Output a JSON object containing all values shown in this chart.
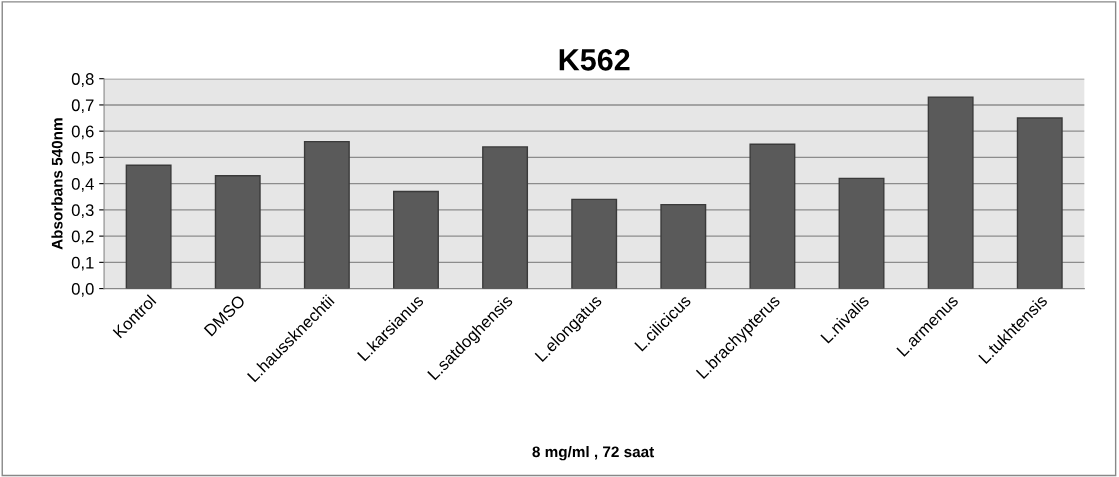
{
  "chart_data": {
    "type": "bar",
    "title": "K562",
    "xlabel": "8 mg/ml , 72 saat",
    "ylabel": "Absorbans 540nm",
    "categories": [
      "Kontrol",
      "DMSO",
      "L.haussknechtii",
      "L.karsianus",
      "L.satdoghensis",
      "L.elongatus",
      "L.cilicicus",
      "L.brachypterus",
      "L.nivalis",
      "L.armenus",
      "L.tukhtensis"
    ],
    "values": [
      0.47,
      0.43,
      0.56,
      0.37,
      0.54,
      0.34,
      0.32,
      0.55,
      0.42,
      0.73,
      0.65
    ],
    "color": "#5a5a5a",
    "ylim": [
      0,
      0.8
    ],
    "yticks": [
      {
        "value": 0,
        "label": "0,0"
      },
      {
        "value": 0.1,
        "label": "0,1"
      },
      {
        "value": 0.2,
        "label": "0,2"
      },
      {
        "value": 0.3,
        "label": "0,3"
      },
      {
        "value": 0.4,
        "label": "0,4"
      },
      {
        "value": 0.5,
        "label": "0,5"
      },
      {
        "value": 0.6,
        "label": "0,6"
      },
      {
        "value": 0.7,
        "label": "0,7"
      },
      {
        "value": 0.8,
        "label": "0,8"
      }
    ],
    "grid": "y"
  }
}
